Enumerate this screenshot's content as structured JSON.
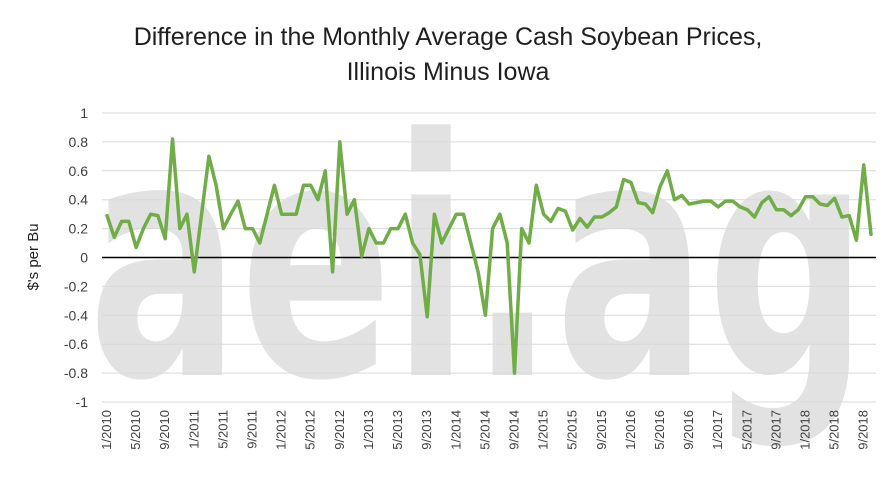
{
  "chart_data": {
    "type": "line",
    "title_line1": "Difference in the Monthly Average Cash Soybean Prices,",
    "title_line2": "Illinois Minus Iowa",
    "ylabel": "$'s per Bu",
    "xlabel": "",
    "ylim": [
      -1,
      1
    ],
    "y_ticks": [
      "1",
      "0.8",
      "0.6",
      "0.4",
      "0.2",
      "0",
      "-0.2",
      "-0.4",
      "-0.6",
      "-0.8",
      "-1"
    ],
    "x_tick_labels": [
      "1/2010",
      "5/2010",
      "9/2010",
      "1/2011",
      "5/2011",
      "9/2011",
      "1/2012",
      "5/2012",
      "9/2012",
      "1/2013",
      "5/2013",
      "9/2013",
      "1/2014",
      "5/2014",
      "9/2014",
      "1/2015",
      "5/2015",
      "9/2015",
      "1/2016",
      "5/2016",
      "9/2016",
      "1/2017",
      "5/2017",
      "9/2017",
      "1/2018",
      "5/2018",
      "9/2018"
    ],
    "grid": true,
    "legend": "none",
    "watermark": "aei.ag",
    "line_color": "#70ad47",
    "series": [
      {
        "x_start": "1/2010",
        "values": [
          0.29,
          0.14,
          0.25,
          0.25,
          0.07,
          0.2,
          0.3,
          0.29,
          0.13,
          0.82,
          0.2,
          0.3,
          -0.1,
          0.3,
          0.7,
          0.5,
          0.2,
          0.3,
          0.39,
          0.2,
          0.2,
          0.1,
          0.3,
          0.5,
          0.3,
          0.3,
          0.3,
          0.5,
          0.5,
          0.4,
          0.6,
          -0.1,
          0.8,
          0.3,
          0.4,
          0.01,
          0.2,
          0.1,
          0.1,
          0.2,
          0.2,
          0.3,
          0.1,
          0.02,
          -0.41,
          0.3,
          0.1,
          0.2,
          0.3,
          0.3,
          0.1,
          -0.1,
          -0.4,
          0.2,
          0.3,
          0.1,
          -0.8,
          0.2,
          0.1,
          0.5,
          0.3,
          0.25,
          0.34,
          0.32,
          0.19,
          0.27,
          0.21,
          0.28,
          0.28,
          0.31,
          0.35,
          0.54,
          0.52,
          0.38,
          0.37,
          0.31,
          0.49,
          0.6,
          0.4,
          0.43,
          0.37,
          0.38,
          0.39,
          0.39,
          0.35,
          0.39,
          0.39,
          0.35,
          0.33,
          0.28,
          0.38,
          0.42,
          0.33,
          0.33,
          0.29,
          0.33,
          0.42,
          0.42,
          0.37,
          0.36,
          0.41,
          0.28,
          0.29,
          0.12,
          0.64,
          0.16
        ]
      }
    ]
  }
}
